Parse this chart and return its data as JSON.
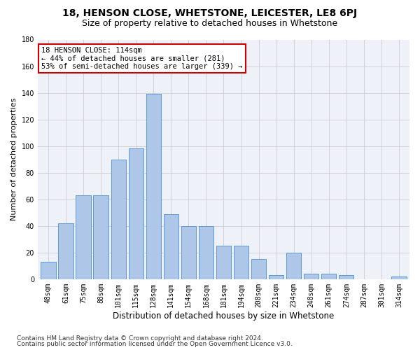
{
  "title": "18, HENSON CLOSE, WHETSTONE, LEICESTER, LE8 6PJ",
  "subtitle": "Size of property relative to detached houses in Whetstone",
  "xlabel": "Distribution of detached houses by size in Whetstone",
  "ylabel": "Number of detached properties",
  "bar_labels": [
    "48sqm",
    "61sqm",
    "75sqm",
    "88sqm",
    "101sqm",
    "115sqm",
    "128sqm",
    "141sqm",
    "154sqm",
    "168sqm",
    "181sqm",
    "194sqm",
    "208sqm",
    "221sqm",
    "234sqm",
    "248sqm",
    "261sqm",
    "274sqm",
    "287sqm",
    "301sqm",
    "314sqm"
  ],
  "bar_values": [
    13,
    42,
    63,
    63,
    90,
    98,
    139,
    49,
    40,
    40,
    25,
    25,
    15,
    3,
    20,
    4,
    4,
    3,
    0,
    0,
    2
  ],
  "bar_color": "#aec6e8",
  "bar_edge_color": "#5b9bd5",
  "annotation_box_text": "18 HENSON CLOSE: 114sqm\n← 44% of detached houses are smaller (281)\n53% of semi-detached houses are larger (339) →",
  "annotation_box_color": "#cc0000",
  "ylim": [
    0,
    180
  ],
  "yticks": [
    0,
    20,
    40,
    60,
    80,
    100,
    120,
    140,
    160,
    180
  ],
  "grid_color": "#cccccc",
  "background_color": "#eef2f8",
  "footer_line1": "Contains HM Land Registry data © Crown copyright and database right 2024.",
  "footer_line2": "Contains public sector information licensed under the Open Government Licence v3.0.",
  "title_fontsize": 10,
  "subtitle_fontsize": 9,
  "xlabel_fontsize": 8.5,
  "ylabel_fontsize": 8,
  "tick_fontsize": 7,
  "annotation_fontsize": 7.5,
  "footer_fontsize": 6.5
}
